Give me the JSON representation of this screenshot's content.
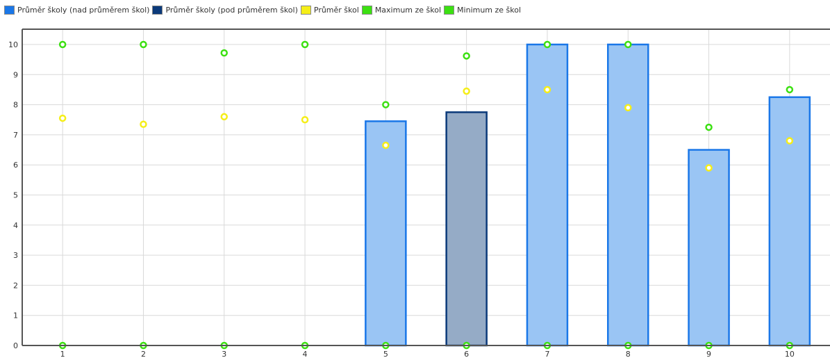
{
  "legend": [
    {
      "label": "Průměr školy (nad průměrem škol)",
      "color": "#1a77e8"
    },
    {
      "label": "Průměr školy (pod průměrem škol)",
      "color": "#0b3a7a"
    },
    {
      "label": "Průměr škol",
      "color": "#f5ee18"
    },
    {
      "label": "Maximum ze škol",
      "color": "#3ce012"
    },
    {
      "label": "Minimum ze škol",
      "color": "#3ce012"
    }
  ],
  "chart_data": {
    "type": "bar",
    "categories": [
      "1",
      "2",
      "3",
      "4",
      "5",
      "6",
      "7",
      "8",
      "9",
      "10"
    ],
    "ylim": [
      0,
      10
    ],
    "yticks": [
      "0",
      "1",
      "2",
      "3",
      "4",
      "5",
      "6",
      "7",
      "8",
      "9",
      "10"
    ],
    "grid": true,
    "legend_position": "top-left",
    "series": [
      {
        "name": "Průměr školy (nad průměrem škol)",
        "kind": "bar",
        "values": [
          null,
          null,
          null,
          null,
          7.45,
          null,
          10.0,
          10.0,
          6.5,
          8.25
        ],
        "color": "#1a77e8",
        "fill": "#9ac5f4"
      },
      {
        "name": "Průměr školy (pod průměrem škol)",
        "kind": "bar",
        "values": [
          null,
          null,
          null,
          null,
          null,
          7.75,
          null,
          null,
          null,
          null
        ],
        "color": "#0b3a7a",
        "fill": "#95abc6"
      },
      {
        "name": "Průměr škol",
        "kind": "point",
        "values": [
          7.55,
          7.35,
          7.6,
          7.5,
          6.65,
          8.45,
          8.5,
          7.9,
          5.9,
          6.8
        ],
        "color": "#f5ee18"
      },
      {
        "name": "Maximum ze škol",
        "kind": "point",
        "values": [
          10.0,
          10.0,
          9.72,
          10.0,
          8.0,
          9.62,
          10.0,
          10.0,
          7.25,
          8.5
        ],
        "color": "#3ce012"
      },
      {
        "name": "Minimum ze škol",
        "kind": "point",
        "values": [
          0,
          0,
          0,
          0,
          0,
          0,
          0,
          0,
          0,
          0
        ],
        "color": "#3ce012"
      }
    ]
  }
}
